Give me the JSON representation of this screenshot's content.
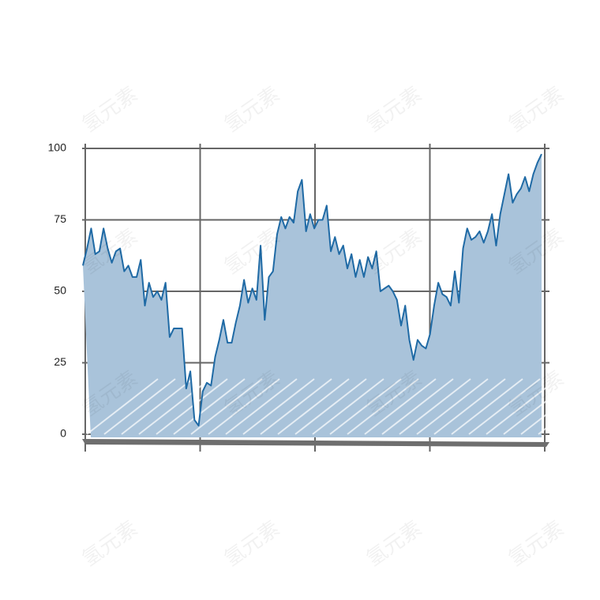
{
  "chart_data": {
    "type": "area",
    "values": [
      59,
      65,
      72,
      63,
      64,
      72,
      65,
      60,
      64,
      65,
      57,
      59,
      55,
      55,
      61,
      45,
      53,
      48,
      50,
      47,
      53,
      34,
      37,
      37,
      37,
      16,
      22,
      5,
      3,
      15,
      18,
      17,
      27,
      33,
      40,
      32,
      32,
      39,
      45,
      54,
      46,
      51,
      47,
      66,
      40,
      55,
      57,
      70,
      76,
      72,
      76,
      74,
      85,
      89,
      71,
      77,
      72,
      75,
      75,
      80,
      64,
      69,
      63,
      66,
      58,
      63,
      55,
      61,
      55,
      62,
      58,
      64,
      50,
      51,
      52,
      50,
      47,
      38,
      45,
      33,
      26,
      33,
      31,
      30,
      35,
      45,
      53,
      49,
      48,
      45,
      57,
      46,
      65,
      72,
      68,
      69,
      71,
      67,
      71,
      77,
      66,
      77,
      84,
      91,
      81,
      84,
      86,
      90,
      85,
      91,
      95,
      98
    ],
    "color": "#1f6aa5",
    "fill": "#a9c3da",
    "ylim": [
      0,
      100
    ],
    "yticks": [
      0,
      25,
      50,
      75,
      100
    ],
    "grid": true
  },
  "watermark": "氢元素"
}
